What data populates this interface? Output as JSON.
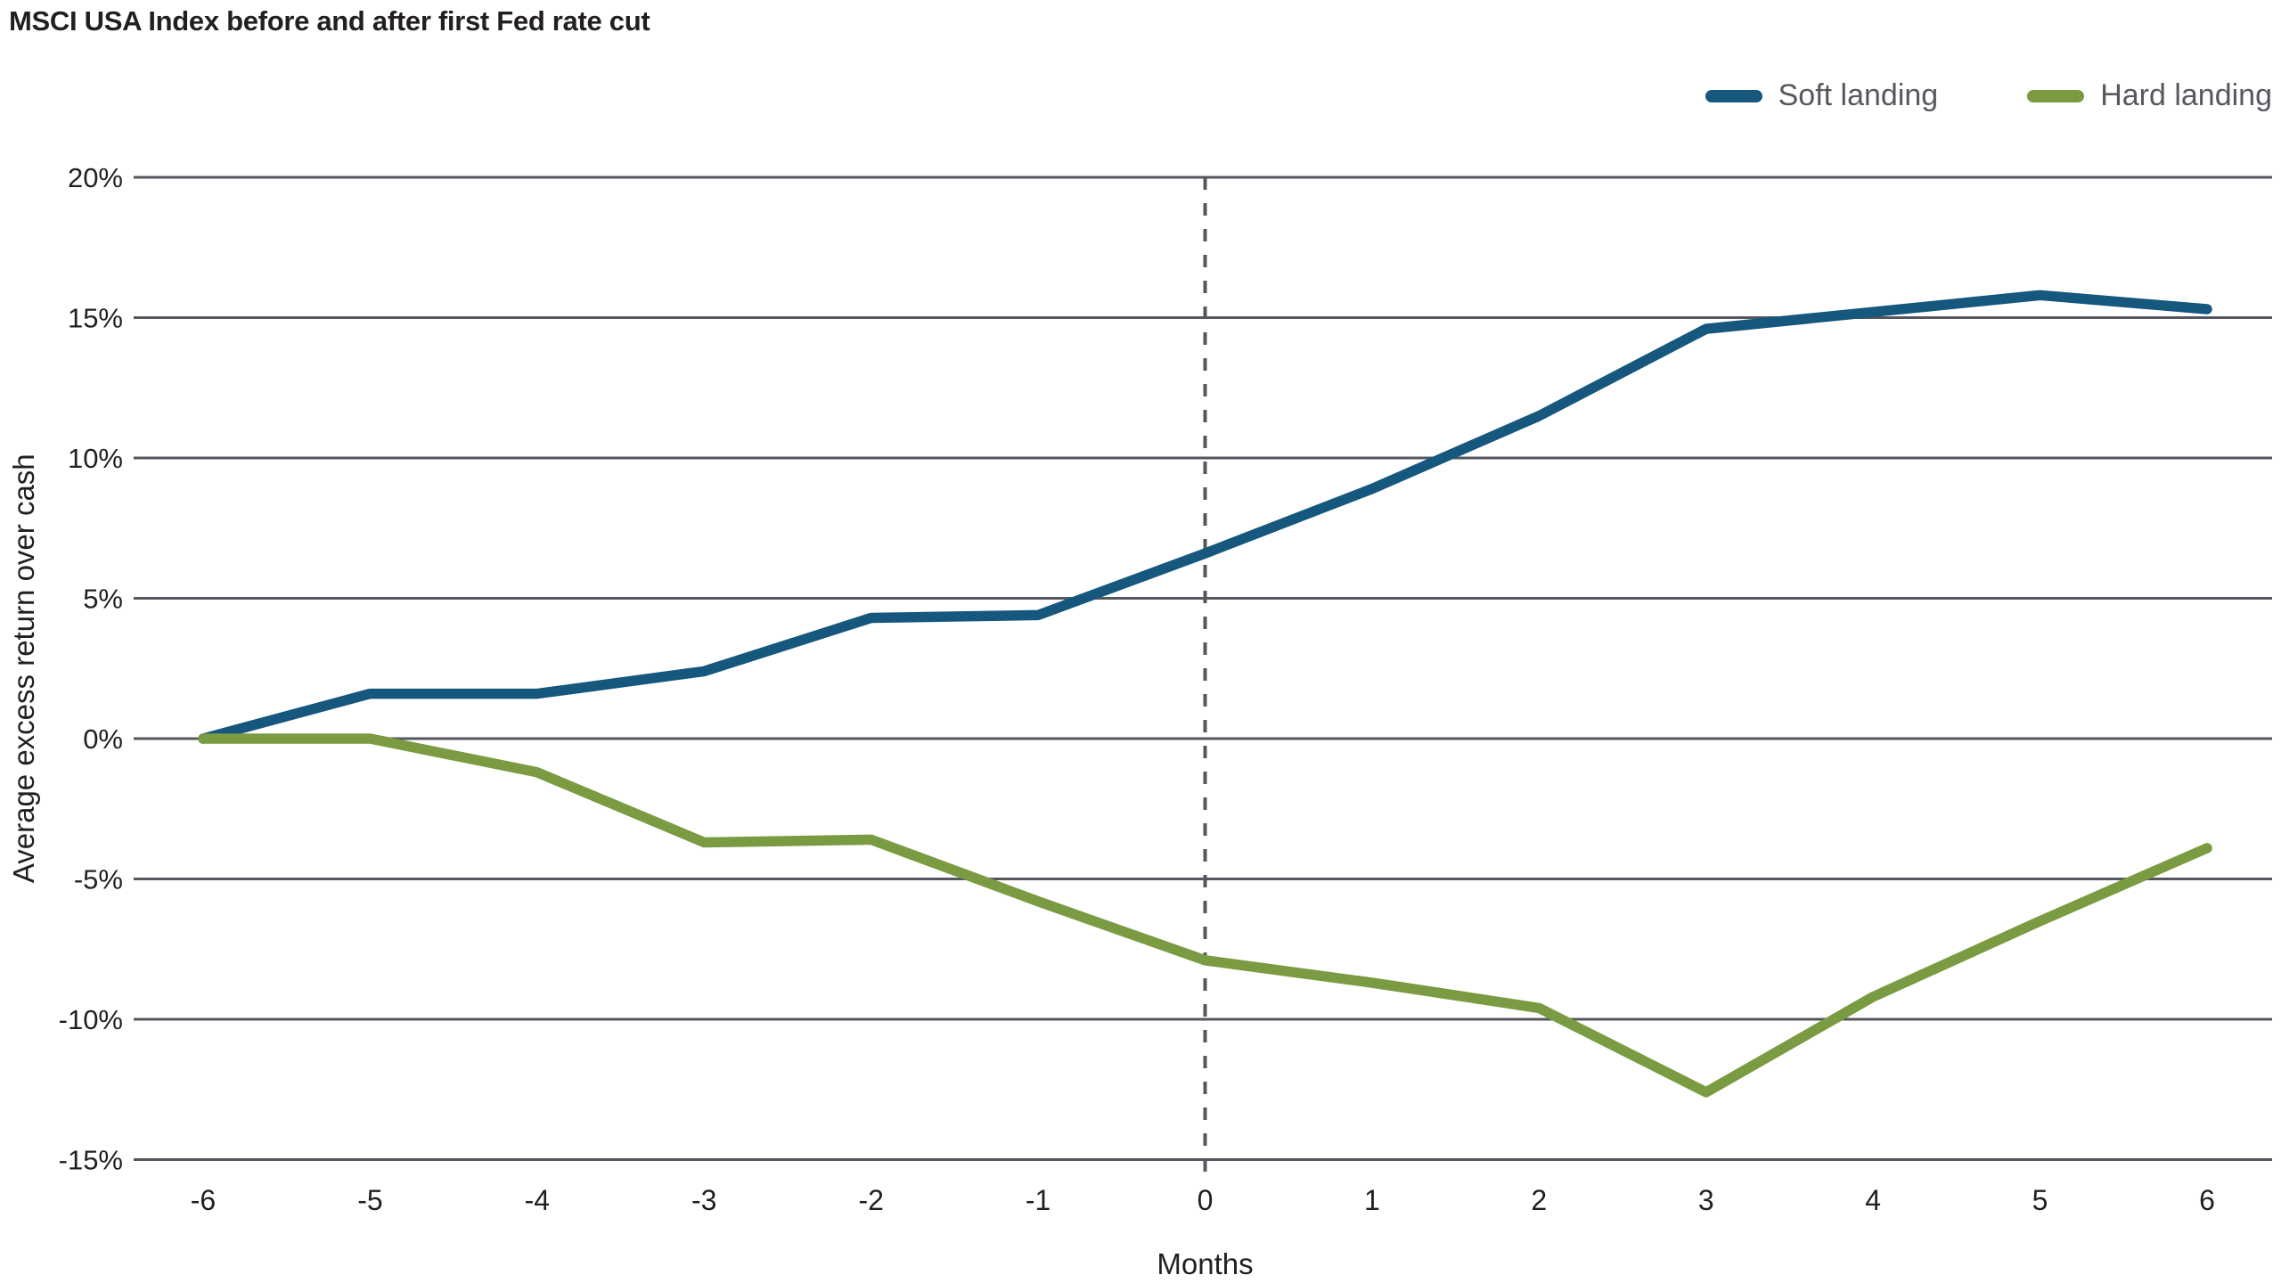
{
  "header": {
    "title": "MSCI USA Index before and after first Fed rate cut"
  },
  "legend": [
    {
      "label": "Soft landing",
      "color": "#15577d"
    },
    {
      "label": "Hard landing",
      "color": "#7a9b42"
    }
  ],
  "chart_data": {
    "type": "line",
    "title": "MSCI USA Index before and after first Fed rate cut",
    "xlabel": "Months",
    "ylabel": "Average excess return over cash",
    "x": [
      -6,
      -5,
      -4,
      -3,
      -2,
      -1,
      0,
      1,
      2,
      3,
      4,
      5,
      6
    ],
    "series": [
      {
        "name": "Soft landing",
        "color": "#15577d",
        "values": [
          0,
          1.6,
          1.6,
          2.4,
          4.3,
          4.4,
          6.6,
          8.9,
          11.5,
          14.6,
          15.2,
          15.8,
          15.3
        ]
      },
      {
        "name": "Hard landing",
        "color": "#7a9b42",
        "values": [
          0,
          0,
          -1.2,
          -3.7,
          -3.6,
          -5.8,
          -7.9,
          -8.7,
          -9.6,
          -12.6,
          -9.2,
          -6.5,
          -3.9
        ]
      }
    ],
    "ylim": [
      -15,
      20
    ],
    "yticks": [
      20,
      15,
      10,
      5,
      0,
      -5,
      -10,
      -15
    ],
    "ytick_labels": [
      "20%",
      "15%",
      "10%",
      "5%",
      "0%",
      "-5%",
      "-10%",
      "-15%"
    ],
    "xticks": [
      -6,
      -5,
      -4,
      -3,
      -2,
      -1,
      0,
      1,
      2,
      3,
      4,
      5,
      6
    ],
    "grid": "horizontal",
    "gridline_color": "#54575d",
    "reference_line": {
      "x": 0,
      "style": "dashed",
      "color": "#54575d"
    },
    "legend_position": "top-right",
    "text_color": "#231f20"
  }
}
